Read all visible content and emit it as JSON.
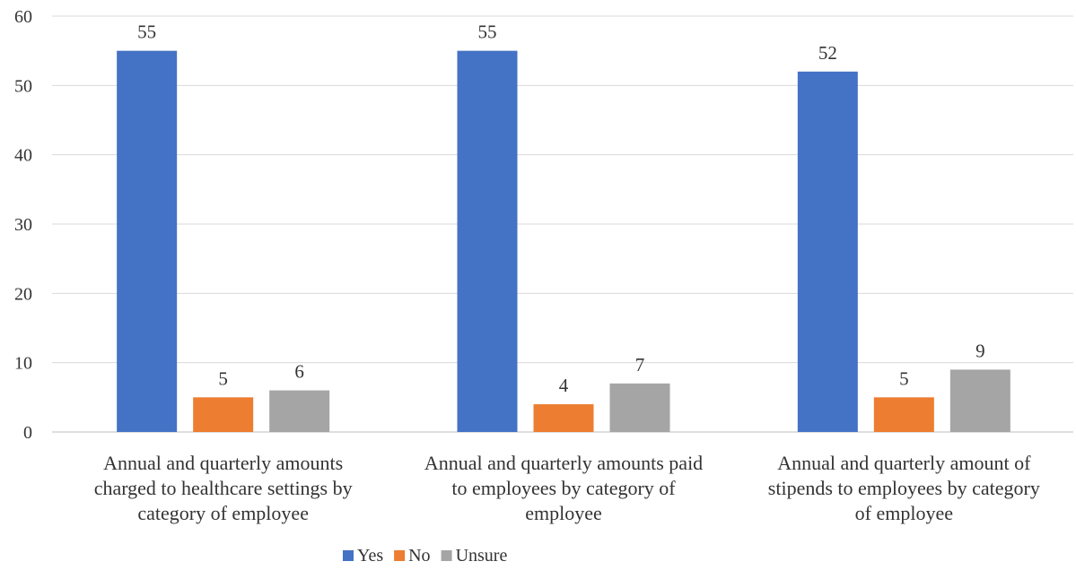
{
  "chart_data": {
    "type": "bar",
    "title": "",
    "xlabel": "",
    "ylabel": "",
    "ylim": [
      0,
      60
    ],
    "yticks": [
      0,
      10,
      20,
      30,
      40,
      50,
      60
    ],
    "grid": true,
    "legend_position": "bottom",
    "categories": [
      [
        "Annual and quarterly amounts",
        "charged to healthcare settings by",
        "category of employee"
      ],
      [
        "Annual and quarterly amounts paid",
        "to employees by category of",
        "employee"
      ],
      [
        "Annual and quarterly amount of",
        "stipends to employees by category",
        "of employee"
      ]
    ],
    "series": [
      {
        "name": "Yes",
        "color": "#4472c4",
        "values": [
          55,
          55,
          52
        ]
      },
      {
        "name": "No",
        "color": "#ed7d31",
        "values": [
          5,
          4,
          5
        ]
      },
      {
        "name": "Unsure",
        "color": "#a5a5a5",
        "values": [
          6,
          7,
          9
        ]
      }
    ]
  }
}
